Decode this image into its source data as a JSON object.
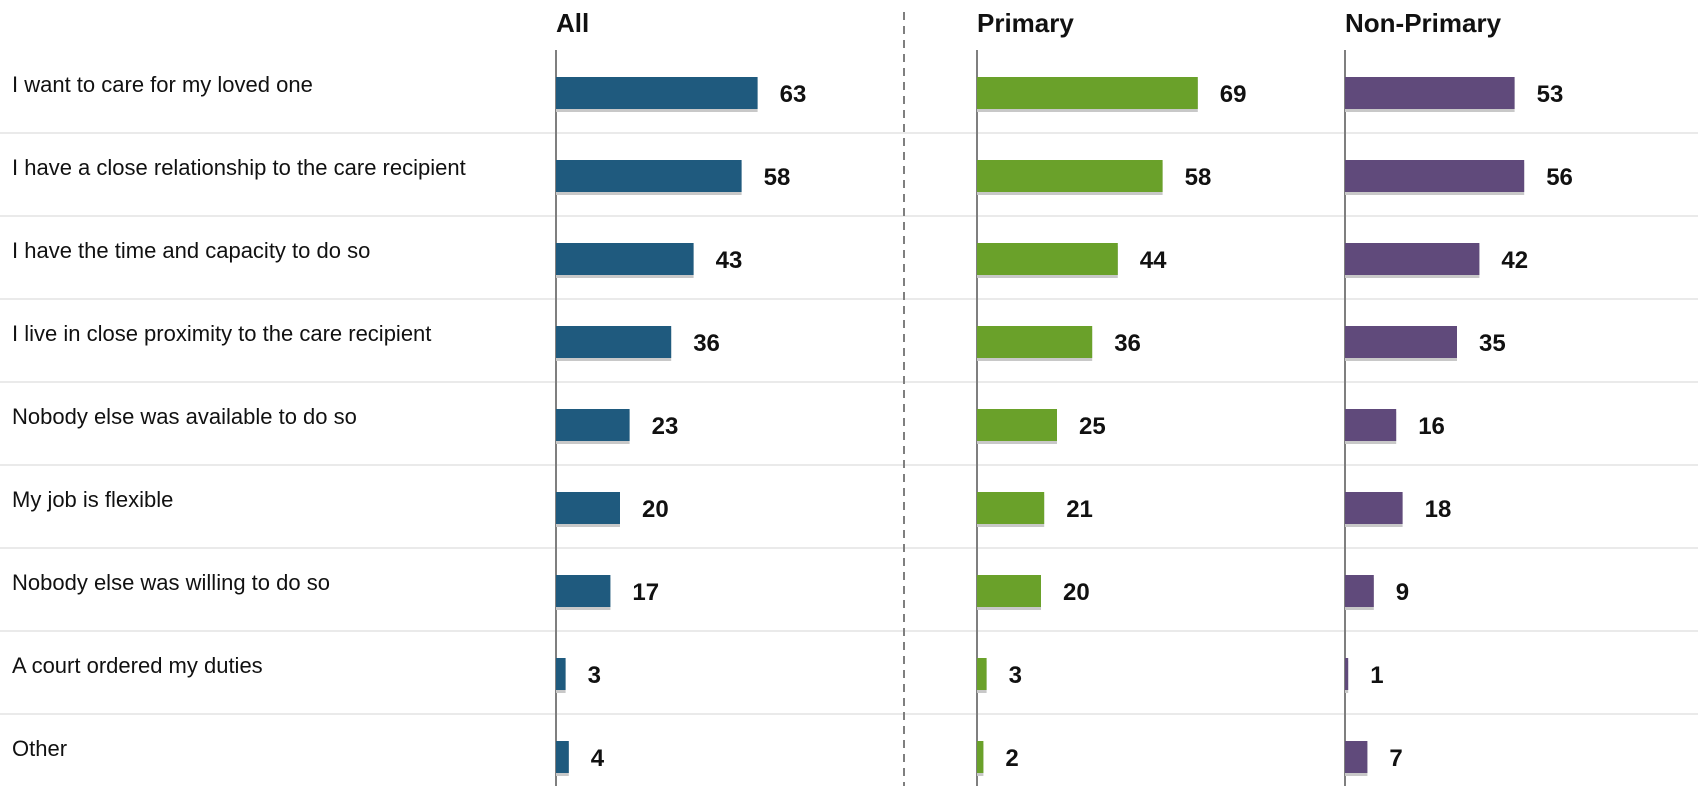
{
  "chart_data": {
    "type": "bar",
    "orientation": "horizontal",
    "categories": [
      "I want to care for my loved one",
      "I have a close relationship to the care recipient",
      "I have the time and capacity to do so",
      "I live in close proximity to the care recipient",
      "Nobody else was available to do so",
      "My job is flexible",
      "Nobody else was willing to do so",
      "A court ordered my duties",
      "Other"
    ],
    "series": [
      {
        "name": "All",
        "color": "#1f5a7e",
        "values": [
          63,
          58,
          43,
          36,
          23,
          20,
          17,
          3,
          4
        ]
      },
      {
        "name": "Primary",
        "color": "#6aa12a",
        "values": [
          69,
          58,
          44,
          36,
          25,
          21,
          20,
          3,
          2
        ]
      },
      {
        "name": "Non-Primary",
        "color": "#604a7b",
        "values": [
          53,
          56,
          42,
          35,
          16,
          18,
          9,
          1,
          7
        ]
      }
    ],
    "xlim": [
      0,
      100
    ],
    "grid": "horizontal separators between categories",
    "data_labels": true
  }
}
